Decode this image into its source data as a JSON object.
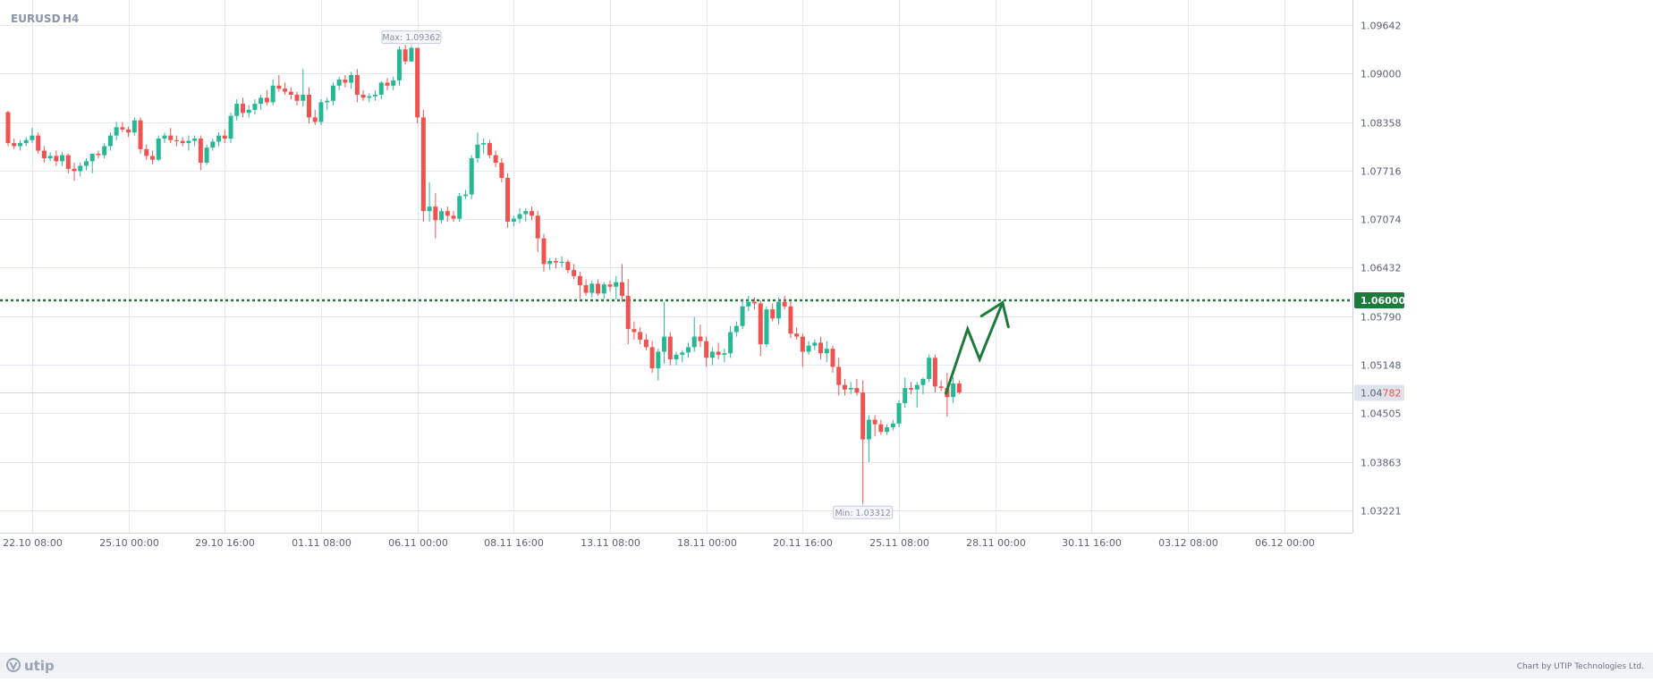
{
  "header": {
    "symbol": "EURUSD",
    "timeframe": "H4"
  },
  "colors": {
    "bull": "#26b895",
    "bear": "#ef5350",
    "level": "#1d7a3a",
    "arrow": "#1d7a3a",
    "grid": "#e3e8f4",
    "axis_text": "#5b6275",
    "footer_bg": "#f0f2f6"
  },
  "footer": {
    "logo": "utip",
    "credit": "Chart by UTIP Technologies Ltd."
  },
  "chart_data": {
    "type": "candlestick",
    "symbol": "EURUSD",
    "timeframe": "H4",
    "y_ticks": [
      1.09642,
      1.09,
      1.08358,
      1.07716,
      1.07074,
      1.06432,
      1.0579,
      1.05148,
      1.04505,
      1.03863,
      1.03221
    ],
    "y_tick_labels": [
      "1.09642",
      "1.09000",
      "1.08358",
      "1.07716",
      "1.07074",
      "1.06432",
      "1.05790",
      "1.05148",
      "1.04505",
      "1.03863",
      "1.03221"
    ],
    "x_tick_labels": [
      "22.10 08:00",
      "25.10 00:00",
      "29.10 16:00",
      "01.11 08:00",
      "06.11 00:00",
      "08.11 16:00",
      "13.11 08:00",
      "18.11 00:00",
      "20.11 16:00",
      "25.11 08:00",
      "28.11 00:00",
      "30.11 16:00",
      "03.12 08:00",
      "06.12 00:00"
    ],
    "x_tick_index": [
      4,
      20,
      36,
      52,
      68,
      84,
      100,
      116,
      132,
      148,
      164,
      180,
      196,
      212
    ],
    "max": {
      "label": "Max: 1.09362",
      "value": 1.09362,
      "index": 67
    },
    "min": {
      "label": "Min: 1.03312",
      "value": 1.03312,
      "index": 142
    },
    "level": {
      "value": 1.06,
      "label": "1.06000",
      "style": "dotted"
    },
    "current_price": {
      "value": 1.04782,
      "label_prefix": "1.04",
      "label_suffix": "782"
    },
    "projection": {
      "description": "forecast zig-zag arrow toward the 1.06000 level",
      "points": [
        [
          155.8,
          1.0477
        ],
        [
          159.4,
          1.0562
        ],
        [
          161.4,
          1.0522
        ],
        [
          165.2,
          1.0597
        ]
      ]
    },
    "candles": [
      [
        1.0849,
        1.0851,
        1.0804,
        1.0808
      ],
      [
        1.0808,
        1.0814,
        1.08,
        1.0804
      ],
      [
        1.0804,
        1.0812,
        1.0798,
        1.0808
      ],
      [
        1.0808,
        1.0816,
        1.0804,
        1.0812
      ],
      [
        1.0812,
        1.0828,
        1.0808,
        1.0818
      ],
      [
        1.0818,
        1.0822,
        1.0794,
        1.0798
      ],
      [
        1.0798,
        1.0804,
        1.0782,
        1.0788
      ],
      [
        1.0788,
        1.0796,
        1.0784,
        1.0791
      ],
      [
        1.0791,
        1.0798,
        1.0778,
        1.0784
      ],
      [
        1.0784,
        1.0796,
        1.0778,
        1.0792
      ],
      [
        1.0792,
        1.0794,
        1.0768,
        1.0774
      ],
      [
        1.0774,
        1.0782,
        1.0758,
        1.0771
      ],
      [
        1.0771,
        1.0782,
        1.0764,
        1.0778
      ],
      [
        1.0778,
        1.0788,
        1.0772,
        1.0784
      ],
      [
        1.0784,
        1.0794,
        1.0768,
        1.0794
      ],
      [
        1.0794,
        1.0798,
        1.0788,
        1.0792
      ],
      [
        1.0792,
        1.0808,
        1.0788,
        1.0804
      ],
      [
        1.0804,
        1.0822,
        1.0798,
        1.0818
      ],
      [
        1.0818,
        1.0836,
        1.0812,
        1.0829
      ],
      [
        1.0829,
        1.0836,
        1.0822,
        1.0826
      ],
      [
        1.0826,
        1.083,
        1.0816,
        1.0822
      ],
      [
        1.0822,
        1.0842,
        1.0818,
        1.0838
      ],
      [
        1.0838,
        1.0842,
        1.0794,
        1.08
      ],
      [
        1.08,
        1.0806,
        1.0786,
        1.0791
      ],
      [
        1.0791,
        1.0798,
        1.078,
        1.0786
      ],
      [
        1.0786,
        1.0818,
        1.0784,
        1.0814
      ],
      [
        1.0814,
        1.0822,
        1.0808,
        1.0818
      ],
      [
        1.0818,
        1.0828,
        1.0808,
        1.0812
      ],
      [
        1.0812,
        1.0818,
        1.0804,
        1.0811
      ],
      [
        1.0811,
        1.0816,
        1.0804,
        1.0808
      ],
      [
        1.0808,
        1.0818,
        1.0798,
        1.0811
      ],
      [
        1.0811,
        1.0818,
        1.0804,
        1.0814
      ],
      [
        1.0814,
        1.0818,
        1.0772,
        1.0782
      ],
      [
        1.0782,
        1.0806,
        1.0779,
        1.0802
      ],
      [
        1.0802,
        1.0814,
        1.0798,
        1.081
      ],
      [
        1.081,
        1.0822,
        1.0804,
        1.0818
      ],
      [
        1.0818,
        1.0826,
        1.0808,
        1.0814
      ],
      [
        1.0814,
        1.0848,
        1.0808,
        1.0844
      ],
      [
        1.0844,
        1.0866,
        1.0838,
        1.086
      ],
      [
        1.086,
        1.0868,
        1.0842,
        1.0848
      ],
      [
        1.0848,
        1.0858,
        1.0842,
        1.0852
      ],
      [
        1.0852,
        1.0866,
        1.0846,
        1.086
      ],
      [
        1.086,
        1.0872,
        1.0852,
        1.0868
      ],
      [
        1.0868,
        1.0878,
        1.0858,
        1.0862
      ],
      [
        1.0862,
        1.0892,
        1.0858,
        1.0884
      ],
      [
        1.0884,
        1.0898,
        1.0876,
        1.088
      ],
      [
        1.088,
        1.0888,
        1.0872,
        1.0876
      ],
      [
        1.0876,
        1.0882,
        1.0866,
        1.0872
      ],
      [
        1.0872,
        1.0876,
        1.0858,
        1.0864
      ],
      [
        1.0864,
        1.0906,
        1.0856,
        1.0872
      ],
      [
        1.0872,
        1.0882,
        1.0834,
        1.0842
      ],
      [
        1.0842,
        1.0852,
        1.0832,
        1.0836
      ],
      [
        1.0836,
        1.0866,
        1.0832,
        1.0862
      ],
      [
        1.0862,
        1.0868,
        1.0852,
        1.0864
      ],
      [
        1.0864,
        1.0888,
        1.0858,
        1.0884
      ],
      [
        1.0884,
        1.0896,
        1.0878,
        1.0892
      ],
      [
        1.0892,
        1.0898,
        1.0882,
        1.0888
      ],
      [
        1.0888,
        1.0902,
        1.088,
        1.0898
      ],
      [
        1.0898,
        1.0906,
        1.0862,
        1.0872
      ],
      [
        1.0872,
        1.0878,
        1.0864,
        1.0868
      ],
      [
        1.0868,
        1.0874,
        1.0862,
        1.087
      ],
      [
        1.087,
        1.0878,
        1.0864,
        1.0872
      ],
      [
        1.0872,
        1.089,
        1.0866,
        1.0888
      ],
      [
        1.0888,
        1.0894,
        1.0878,
        1.0884
      ],
      [
        1.0884,
        1.0896,
        1.0878,
        1.0891
      ],
      [
        1.0891,
        1.0936,
        1.0884,
        1.0932
      ],
      [
        1.0932,
        1.0938,
        1.0912,
        1.0916
      ],
      [
        1.0916,
        1.0936,
        1.0916,
        1.0934
      ],
      [
        1.0934,
        1.0934,
        1.0834,
        1.0842
      ],
      [
        1.0842,
        1.0852,
        1.0704,
        1.0718
      ],
      [
        1.0718,
        1.0756,
        1.0704,
        1.0724
      ],
      [
        1.0724,
        1.0742,
        1.0682,
        1.0706
      ],
      [
        1.0706,
        1.0722,
        1.0702,
        1.0718
      ],
      [
        1.0718,
        1.0724,
        1.0704,
        1.0712
      ],
      [
        1.0712,
        1.0718,
        1.0704,
        1.0708
      ],
      [
        1.0708,
        1.0742,
        1.0704,
        1.0738
      ],
      [
        1.0738,
        1.0746,
        1.0734,
        1.074
      ],
      [
        1.074,
        1.0792,
        1.0734,
        1.0788
      ],
      [
        1.0788,
        1.0822,
        1.0782,
        1.0806
      ],
      [
        1.0806,
        1.0814,
        1.0794,
        1.0808
      ],
      [
        1.0808,
        1.0812,
        1.0788,
        1.0792
      ],
      [
        1.0792,
        1.0798,
        1.0776,
        1.0782
      ],
      [
        1.0782,
        1.0788,
        1.0756,
        1.0762
      ],
      [
        1.0762,
        1.0768,
        1.0696,
        1.0704
      ],
      [
        1.0704,
        1.0712,
        1.0698,
        1.0708
      ],
      [
        1.0708,
        1.0722,
        1.0702,
        1.0714
      ],
      [
        1.0714,
        1.0722,
        1.0704,
        1.0718
      ],
      [
        1.0718,
        1.0724,
        1.0706,
        1.0712
      ],
      [
        1.0712,
        1.0718,
        1.0664,
        1.0682
      ],
      [
        1.0682,
        1.0688,
        1.0638,
        1.0648
      ],
      [
        1.0648,
        1.0656,
        1.064,
        1.0652
      ],
      [
        1.0652,
        1.0656,
        1.0642,
        1.065
      ],
      [
        1.065,
        1.0658,
        1.0644,
        1.0651
      ],
      [
        1.0651,
        1.0654,
        1.0636,
        1.064
      ],
      [
        1.064,
        1.0648,
        1.0628,
        1.0632
      ],
      [
        1.0632,
        1.0638,
        1.0602,
        1.062
      ],
      [
        1.062,
        1.0628,
        1.0606,
        1.061
      ],
      [
        1.061,
        1.0626,
        1.0604,
        1.0622
      ],
      [
        1.0622,
        1.0628,
        1.0606,
        1.0609
      ],
      [
        1.0609,
        1.0624,
        1.0602,
        1.0621
      ],
      [
        1.0621,
        1.0626,
        1.0612,
        1.0618
      ],
      [
        1.0618,
        1.0632,
        1.0601,
        1.0624
      ],
      [
        1.0624,
        1.0648,
        1.0598,
        1.0606
      ],
      [
        1.0606,
        1.0628,
        1.0542,
        1.0562
      ],
      [
        1.0562,
        1.0572,
        1.0548,
        1.0558
      ],
      [
        1.0558,
        1.0564,
        1.0542,
        1.0548
      ],
      [
        1.0548,
        1.0556,
        1.0534,
        1.0538
      ],
      [
        1.0538,
        1.0546,
        1.0504,
        1.051
      ],
      [
        1.051,
        1.0536,
        1.0494,
        1.0532
      ],
      [
        1.0532,
        1.0598,
        1.0516,
        1.0552
      ],
      [
        1.0552,
        1.0558,
        1.0514,
        1.0522
      ],
      [
        1.0522,
        1.0532,
        1.0514,
        1.0528
      ],
      [
        1.0528,
        1.0534,
        1.0518,
        1.0531
      ],
      [
        1.0531,
        1.0544,
        1.0524,
        1.0538
      ],
      [
        1.0538,
        1.0578,
        1.0532,
        1.0552
      ],
      [
        1.0552,
        1.0568,
        1.0538,
        1.0546
      ],
      [
        1.0546,
        1.0552,
        1.0512,
        1.0524
      ],
      [
        1.0524,
        1.0538,
        1.0514,
        1.0532
      ],
      [
        1.0532,
        1.0544,
        1.0522,
        1.0528
      ],
      [
        1.0528,
        1.0536,
        1.0518,
        1.053
      ],
      [
        1.053,
        1.0566,
        1.0524,
        1.0558
      ],
      [
        1.0558,
        1.0572,
        1.0552,
        1.0566
      ],
      [
        1.0566,
        1.0602,
        1.0562,
        1.0592
      ],
      [
        1.0592,
        1.0606,
        1.0586,
        1.0598
      ],
      [
        1.0598,
        1.0604,
        1.0588,
        1.0596
      ],
      [
        1.0596,
        1.06,
        1.0526,
        1.0542
      ],
      [
        1.0542,
        1.0592,
        1.0538,
        1.0588
      ],
      [
        1.0588,
        1.0596,
        1.0572,
        1.0576
      ],
      [
        1.0576,
        1.0604,
        1.0568,
        1.0598
      ],
      [
        1.0598,
        1.0606,
        1.0588,
        1.0592
      ],
      [
        1.0592,
        1.0598,
        1.055,
        1.0556
      ],
      [
        1.0556,
        1.0564,
        1.0548,
        1.0552
      ],
      [
        1.0552,
        1.0556,
        1.0512,
        1.0532
      ],
      [
        1.0532,
        1.0546,
        1.0528,
        1.054
      ],
      [
        1.054,
        1.0548,
        1.0534,
        1.0544
      ],
      [
        1.0544,
        1.0552,
        1.0522,
        1.053
      ],
      [
        1.053,
        1.0546,
        1.0518,
        1.0536
      ],
      [
        1.0536,
        1.054,
        1.0504,
        1.0512
      ],
      [
        1.0512,
        1.0524,
        1.0474,
        1.0488
      ],
      [
        1.0488,
        1.0496,
        1.0474,
        1.0482
      ],
      [
        1.0482,
        1.0492,
        1.0476,
        1.0484
      ],
      [
        1.0484,
        1.0496,
        1.0474,
        1.0478
      ],
      [
        1.0478,
        1.0494,
        1.0331,
        1.0416
      ],
      [
        1.0416,
        1.0448,
        1.0386,
        1.0442
      ],
      [
        1.0442,
        1.0448,
        1.042,
        1.0436
      ],
      [
        1.0436,
        1.0442,
        1.0422,
        1.0426
      ],
      [
        1.0426,
        1.0436,
        1.0422,
        1.0432
      ],
      [
        1.0432,
        1.0442,
        1.0428,
        1.0437
      ],
      [
        1.0437,
        1.0468,
        1.0432,
        1.0464
      ],
      [
        1.0464,
        1.0498,
        1.0458,
        1.0484
      ],
      [
        1.0484,
        1.0492,
        1.0476,
        1.0482
      ],
      [
        1.0482,
        1.0492,
        1.0458,
        1.0488
      ],
      [
        1.0488,
        1.0498,
        1.0476,
        1.0496
      ],
      [
        1.0496,
        1.0528,
        1.0492,
        1.0524
      ],
      [
        1.0524,
        1.0528,
        1.0478,
        1.0486
      ],
      [
        1.0486,
        1.0494,
        1.048,
        1.0484
      ],
      [
        1.0484,
        1.0504,
        1.0446,
        1.0472
      ],
      [
        1.0472,
        1.0498,
        1.0464,
        1.049
      ],
      [
        1.049,
        1.0494,
        1.0476,
        1.0478
      ]
    ]
  }
}
